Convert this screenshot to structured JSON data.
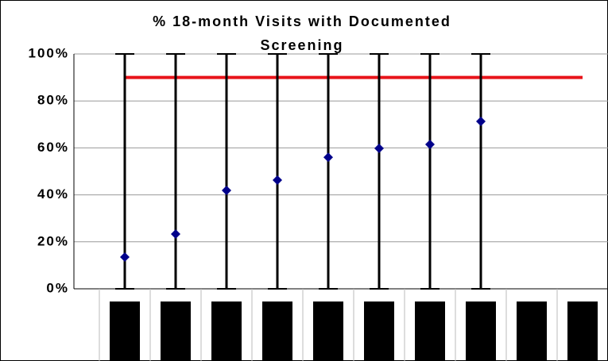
{
  "chart_data": {
    "type": "scatter",
    "title": "% 18-month Visits with Documented Screening",
    "categories": [
      null,
      null,
      null,
      null,
      null,
      null,
      null,
      null,
      null,
      null
    ],
    "series": [
      {
        "color": "#00008b",
        "values": [
          13.5,
          23.3,
          41.9,
          46.3,
          56,
          59.8,
          61.5,
          71.3,
          null,
          null
        ],
        "low": [
          0,
          0,
          0,
          0,
          0,
          0,
          0,
          0,
          null,
          null
        ],
        "high": [
          100,
          100,
          100,
          100,
          100,
          100,
          100,
          100,
          null,
          null
        ]
      }
    ],
    "target": 90,
    "target_color": "#e8141a",
    "ylim": [
      0,
      100
    ],
    "yticks": [
      {
        "value": 0,
        "label": "0%"
      },
      {
        "value": 20,
        "label": "20%"
      },
      {
        "value": 40,
        "label": "40%"
      },
      {
        "value": 60,
        "label": "60%"
      },
      {
        "value": 80,
        "label": "80%"
      },
      {
        "value": 100,
        "label": "100%"
      }
    ],
    "grid": true
  }
}
